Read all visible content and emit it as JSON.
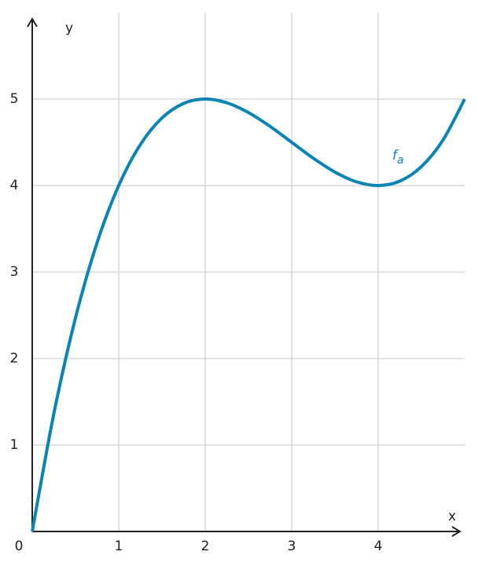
{
  "chart_data": {
    "type": "line",
    "x_label": "x",
    "y_label": "y",
    "x": [
      0,
      0.25,
      0.5,
      0.75,
      1,
      1.25,
      1.5,
      1.75,
      2,
      2.25,
      2.5,
      2.75,
      3,
      3.25,
      3.5,
      3.75,
      4,
      4.25,
      4.5,
      4.75,
      5
    ],
    "series": [
      {
        "name": "f",
        "name_subscript": "a",
        "color": "#0a84b4",
        "values": [
          0,
          1.363,
          2.469,
          3.34,
          4,
          4.473,
          4.781,
          4.949,
          5,
          4.957,
          4.844,
          4.684,
          4.5,
          4.316,
          4.156,
          4.043,
          4,
          4.051,
          4.219,
          4.527,
          5
        ]
      }
    ],
    "xlim": [
      0,
      5
    ],
    "ylim": [
      0,
      6
    ],
    "xticks": [
      0,
      1,
      2,
      3,
      4
    ],
    "yticks": [
      1,
      2,
      3,
      4,
      5
    ],
    "grid": true
  }
}
